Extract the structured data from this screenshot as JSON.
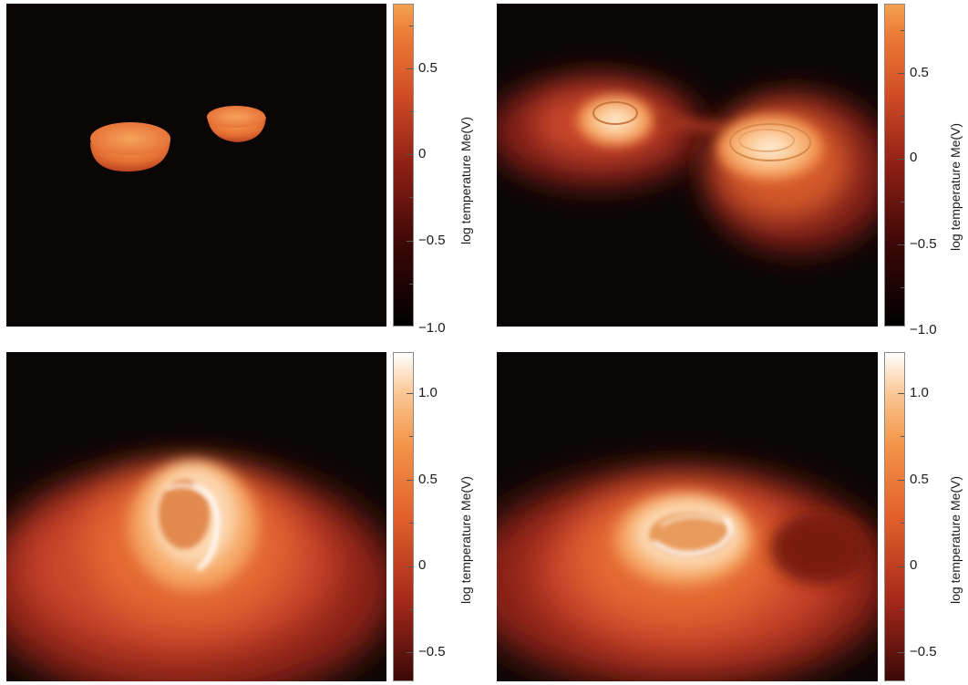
{
  "panels": [
    {
      "id": "top-left",
      "colorbar": {
        "title": "log temperature  Me(V)",
        "tick_labels": [
          "0.5",
          "0",
          "−0.5",
          "−1.0"
        ]
      }
    },
    {
      "id": "top-right",
      "colorbar": {
        "title": "log temperature  Me(V)",
        "tick_labels": [
          "0.5",
          "0",
          "−0.5",
          "−1.0"
        ]
      }
    },
    {
      "id": "bottom-left",
      "colorbar": {
        "title": "log temperature  Me(V)",
        "tick_labels": [
          "1.0",
          "0.5",
          "0",
          "−0.5"
        ]
      }
    },
    {
      "id": "bottom-right",
      "colorbar": {
        "title": "log temperature  Me(V)",
        "tick_labels": [
          "1.0",
          "0.5",
          "0",
          "−0.5"
        ]
      }
    }
  ],
  "colors": {
    "background": "#0b0606",
    "colormap": [
      "#000000",
      "#5a0f0a",
      "#b8331e",
      "#e8662d",
      "#f7a25e",
      "#fde3c6",
      "#ffffff"
    ]
  }
}
